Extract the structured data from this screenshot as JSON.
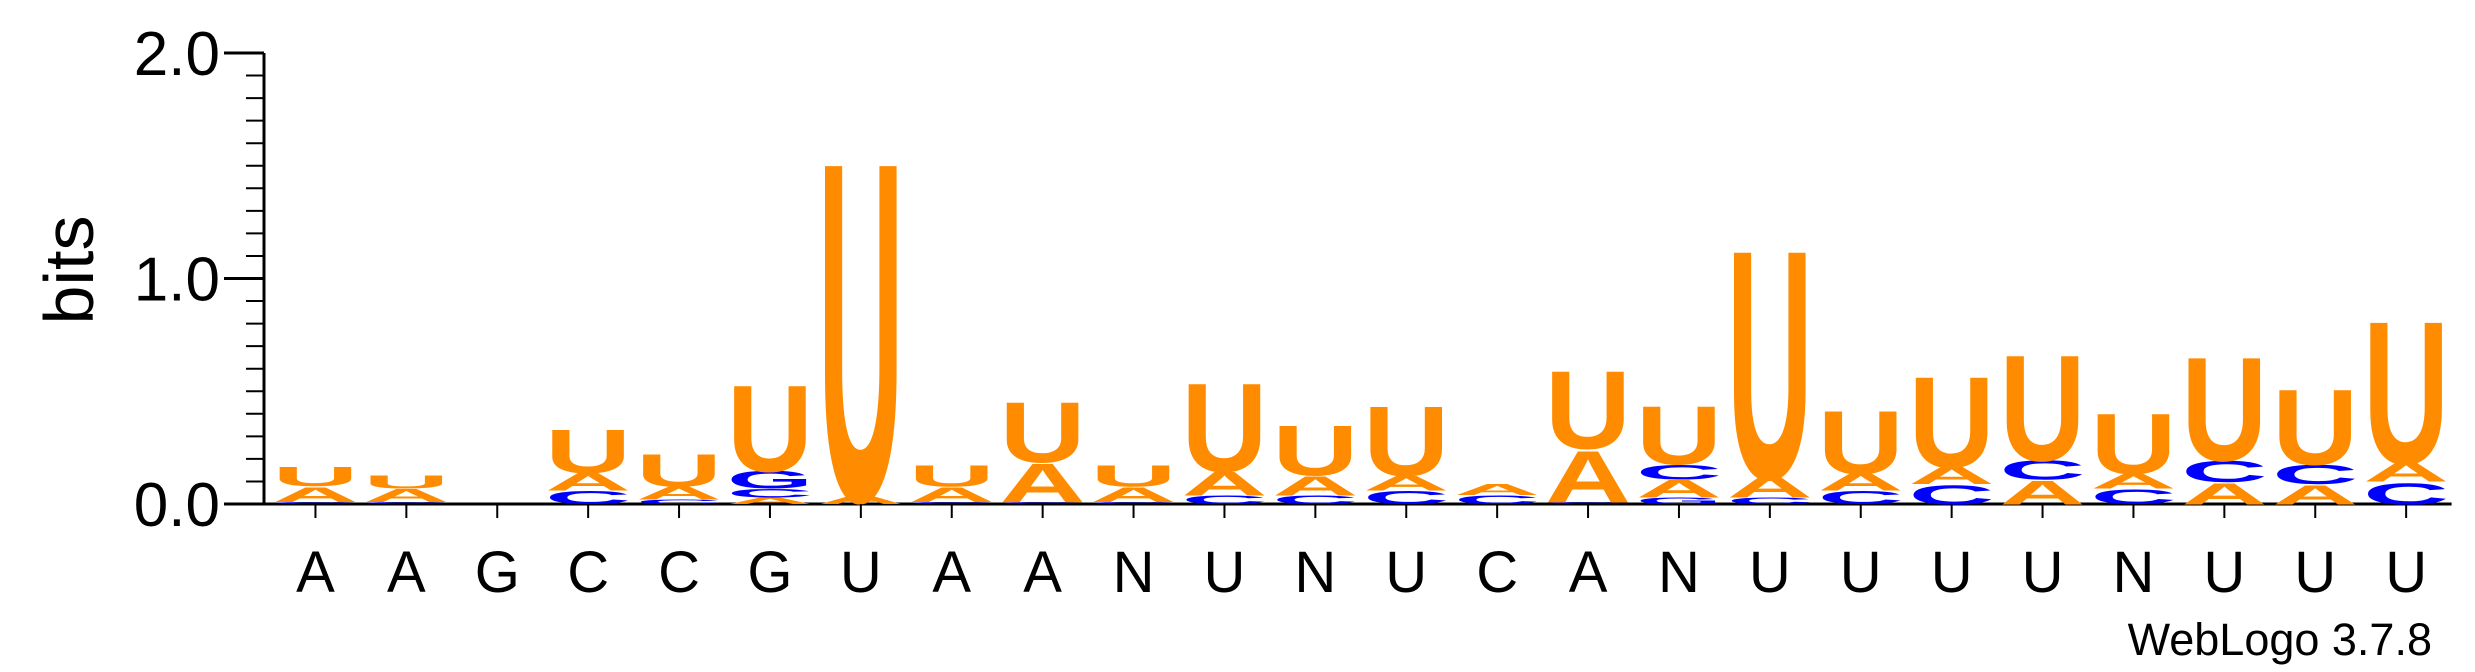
{
  "chart_data": {
    "type": "sequence-logo",
    "ylabel": "bits",
    "ylim": [
      0,
      2.0
    ],
    "yticks": [
      {
        "value": 0.0,
        "label": "0.0"
      },
      {
        "value": 1.0,
        "label": "1.0"
      },
      {
        "value": 2.0,
        "label": "2.0"
      }
    ],
    "colors": {
      "U": "#ff8c00",
      "A": "#ff8c00",
      "C": "#0000ff",
      "G": "#0000ff"
    },
    "positions": [
      {
        "label": "A",
        "stack": [
          {
            "letter": "C",
            "bits": 0.01
          },
          {
            "letter": "A",
            "bits": 0.07
          },
          {
            "letter": "U",
            "bits": 0.09
          }
        ]
      },
      {
        "label": "A",
        "stack": [
          {
            "letter": "C",
            "bits": 0.01
          },
          {
            "letter": "A",
            "bits": 0.06
          },
          {
            "letter": "U",
            "bits": 0.06
          }
        ]
      },
      {
        "label": "G",
        "stack": []
      },
      {
        "label": "C",
        "stack": [
          {
            "letter": "C",
            "bits": 0.06
          },
          {
            "letter": "A",
            "bits": 0.08
          },
          {
            "letter": "U",
            "bits": 0.2
          }
        ]
      },
      {
        "label": "C",
        "stack": [
          {
            "letter": "C",
            "bits": 0.02
          },
          {
            "letter": "A",
            "bits": 0.06
          },
          {
            "letter": "U",
            "bits": 0.15
          }
        ]
      },
      {
        "label": "G",
        "stack": [
          {
            "letter": "A",
            "bits": 0.03
          },
          {
            "letter": "C",
            "bits": 0.04
          },
          {
            "letter": "G",
            "bits": 0.08
          },
          {
            "letter": "U",
            "bits": 0.4
          }
        ]
      },
      {
        "label": "U",
        "stack": [
          {
            "letter": "A",
            "bits": 0.04
          },
          {
            "letter": "U",
            "bits": 1.57
          }
        ]
      },
      {
        "label": "A",
        "stack": [
          {
            "letter": "C",
            "bits": 0.01
          },
          {
            "letter": "A",
            "bits": 0.07
          },
          {
            "letter": "U",
            "bits": 0.1
          }
        ]
      },
      {
        "label": "A",
        "stack": [
          {
            "letter": "C",
            "bits": 0.01
          },
          {
            "letter": "A",
            "bits": 0.18
          },
          {
            "letter": "U",
            "bits": 0.28
          }
        ]
      },
      {
        "label": "N",
        "stack": [
          {
            "letter": "C",
            "bits": 0.01
          },
          {
            "letter": "A",
            "bits": 0.07
          },
          {
            "letter": "U",
            "bits": 0.1
          }
        ]
      },
      {
        "label": "U",
        "stack": [
          {
            "letter": "C",
            "bits": 0.04
          },
          {
            "letter": "A",
            "bits": 0.11
          },
          {
            "letter": "U",
            "bits": 0.41
          }
        ]
      },
      {
        "label": "N",
        "stack": [
          {
            "letter": "C",
            "bits": 0.04
          },
          {
            "letter": "A",
            "bits": 0.09
          },
          {
            "letter": "U",
            "bits": 0.23
          }
        ]
      },
      {
        "label": "U",
        "stack": [
          {
            "letter": "C",
            "bits": 0.06
          },
          {
            "letter": "A",
            "bits": 0.07
          },
          {
            "letter": "U",
            "bits": 0.32
          }
        ]
      },
      {
        "label": "C",
        "stack": [
          {
            "letter": "C",
            "bits": 0.04
          },
          {
            "letter": "A",
            "bits": 0.05
          }
        ]
      },
      {
        "label": "A",
        "stack": [
          {
            "letter": "C",
            "bits": 0.01
          },
          {
            "letter": "A",
            "bits": 0.24
          },
          {
            "letter": "U",
            "bits": 0.36
          }
        ]
      },
      {
        "label": "N",
        "stack": [
          {
            "letter": "G",
            "bits": 0.03
          },
          {
            "letter": "A",
            "bits": 0.08
          },
          {
            "letter": "C",
            "bits": 0.07
          },
          {
            "letter": "U",
            "bits": 0.27
          }
        ]
      },
      {
        "label": "U",
        "stack": [
          {
            "letter": "C",
            "bits": 0.03
          },
          {
            "letter": "A",
            "bits": 0.1
          },
          {
            "letter": "U",
            "bits": 1.06
          }
        ]
      },
      {
        "label": "U",
        "stack": [
          {
            "letter": "C",
            "bits": 0.06
          },
          {
            "letter": "A",
            "bits": 0.08
          },
          {
            "letter": "U",
            "bits": 0.29
          }
        ]
      },
      {
        "label": "U",
        "stack": [
          {
            "letter": "C",
            "bits": 0.09
          },
          {
            "letter": "A",
            "bits": 0.08
          },
          {
            "letter": "U",
            "bits": 0.42
          }
        ]
      },
      {
        "label": "U",
        "stack": [
          {
            "letter": "A",
            "bits": 0.11
          },
          {
            "letter": "C",
            "bits": 0.09
          },
          {
            "letter": "U",
            "bits": 0.49
          }
        ]
      },
      {
        "label": "N",
        "stack": [
          {
            "letter": "C",
            "bits": 0.07
          },
          {
            "letter": "A",
            "bits": 0.07
          },
          {
            "letter": "U",
            "bits": 0.28
          }
        ]
      },
      {
        "label": "U",
        "stack": [
          {
            "letter": "A",
            "bits": 0.1
          },
          {
            "letter": "C",
            "bits": 0.1
          },
          {
            "letter": "U",
            "bits": 0.48
          }
        ]
      },
      {
        "label": "U",
        "stack": [
          {
            "letter": "A",
            "bits": 0.09
          },
          {
            "letter": "C",
            "bits": 0.09
          },
          {
            "letter": "U",
            "bits": 0.35
          }
        ]
      },
      {
        "label": "U",
        "stack": [
          {
            "letter": "C",
            "bits": 0.1
          },
          {
            "letter": "A",
            "bits": 0.09
          },
          {
            "letter": "U",
            "bits": 0.66
          }
        ]
      }
    ],
    "credit": "WebLogo 3.7.8"
  }
}
